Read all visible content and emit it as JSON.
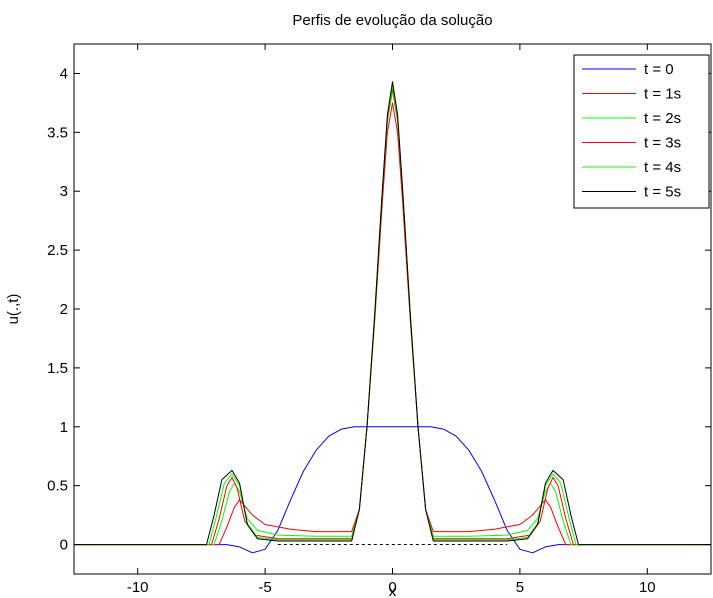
{
  "chart_data": {
    "type": "line",
    "title": "Perfis de evolução da solução",
    "xlabel": "x",
    "ylabel": "u(.,t)",
    "xlim": [
      -12.5,
      12.5
    ],
    "ylim": [
      -0.25,
      4.25
    ],
    "xticks": [
      -10,
      -5,
      0,
      5,
      10
    ],
    "yticks": [
      0,
      0.5,
      1,
      1.5,
      2,
      2.5,
      3,
      3.5,
      4
    ],
    "xtick_labels": [
      "-10",
      "-5",
      "0",
      "5",
      "10"
    ],
    "ytick_labels": [
      "0",
      "0.5",
      "1",
      "1.5",
      "2",
      "2.5",
      "3",
      "3.5",
      "4"
    ],
    "grid": false,
    "legend_position": "top-right",
    "series": [
      {
        "name": "t = 0",
        "color": "#0000ff",
        "x": [
          -12.5,
          -6.5,
          -6.0,
          -5.5,
          -5.0,
          -4.5,
          -4.0,
          -3.5,
          -3.0,
          -2.5,
          -2.0,
          -1.5,
          1.5,
          2.0,
          2.5,
          3.0,
          3.5,
          4.0,
          4.5,
          5.0,
          5.5,
          6.0,
          6.5,
          12.5
        ],
        "y": [
          0,
          0,
          -0.02,
          -0.07,
          -0.04,
          0.12,
          0.38,
          0.62,
          0.8,
          0.92,
          0.98,
          1.0,
          1.0,
          0.98,
          0.92,
          0.8,
          0.62,
          0.38,
          0.12,
          -0.04,
          -0.07,
          -0.02,
          0,
          0
        ]
      },
      {
        "name": "t = 1s",
        "color": "#ff0000",
        "x": [
          -12.5,
          -6.8,
          -6.5,
          -6.2,
          -6.0,
          -5.5,
          -5.0,
          -4.0,
          -3.0,
          -2.0,
          -1.6,
          -1.3,
          -1.0,
          -0.7,
          -0.4,
          -0.2,
          0.0,
          0.2,
          0.4,
          0.7,
          1.0,
          1.3,
          1.6,
          2.0,
          3.0,
          4.0,
          5.0,
          5.5,
          6.0,
          6.2,
          6.5,
          6.8,
          12.5
        ],
        "y": [
          0,
          0,
          0.15,
          0.32,
          0.38,
          0.25,
          0.17,
          0.13,
          0.11,
          0.11,
          0.11,
          0.3,
          1.0,
          1.9,
          2.9,
          3.5,
          3.75,
          3.5,
          2.9,
          1.9,
          1.0,
          0.3,
          0.11,
          0.11,
          0.11,
          0.13,
          0.17,
          0.25,
          0.38,
          0.32,
          0.15,
          0,
          0
        ]
      },
      {
        "name": "t = 2s",
        "color": "#00ff00",
        "x": [
          -12.5,
          -7.0,
          -6.7,
          -6.4,
          -6.2,
          -6.0,
          -5.7,
          -5.3,
          -4.5,
          -3.0,
          -2.0,
          -1.6,
          -1.3,
          -1.0,
          -0.7,
          -0.4,
          -0.2,
          0.0,
          0.2,
          0.4,
          0.7,
          1.0,
          1.3,
          1.6,
          2.0,
          3.0,
          4.5,
          5.3,
          5.7,
          6.0,
          6.2,
          6.4,
          6.7,
          7.0,
          12.5
        ],
        "y": [
          0,
          0,
          0.2,
          0.45,
          0.52,
          0.45,
          0.22,
          0.12,
          0.08,
          0.07,
          0.07,
          0.07,
          0.3,
          1.0,
          1.95,
          3.0,
          3.6,
          3.85,
          3.6,
          3.0,
          1.95,
          1.0,
          0.3,
          0.07,
          0.07,
          0.07,
          0.08,
          0.12,
          0.22,
          0.45,
          0.52,
          0.45,
          0.2,
          0,
          0
        ]
      },
      {
        "name": "t = 3s",
        "color": "#ff0000",
        "x": [
          -12.5,
          -7.1,
          -6.8,
          -6.5,
          -6.3,
          -6.1,
          -5.8,
          -5.4,
          -4.5,
          -3.0,
          -2.0,
          -1.6,
          -1.3,
          -1.0,
          -0.7,
          -0.4,
          -0.2,
          0.0,
          0.2,
          0.4,
          0.7,
          1.0,
          1.3,
          1.6,
          2.0,
          3.0,
          4.5,
          5.4,
          5.8,
          6.1,
          6.3,
          6.5,
          6.8,
          7.1,
          12.5
        ],
        "y": [
          0,
          0,
          0.22,
          0.5,
          0.57,
          0.48,
          0.2,
          0.08,
          0.05,
          0.05,
          0.05,
          0.05,
          0.3,
          1.0,
          1.95,
          3.0,
          3.6,
          3.88,
          3.6,
          3.0,
          1.95,
          1.0,
          0.3,
          0.05,
          0.05,
          0.05,
          0.05,
          0.08,
          0.2,
          0.48,
          0.57,
          0.5,
          0.22,
          0,
          0
        ]
      },
      {
        "name": "t = 4s",
        "color": "#00ff00",
        "x": [
          -12.5,
          -7.2,
          -6.9,
          -6.6,
          -6.3,
          -6.0,
          -5.7,
          -5.3,
          -4.5,
          -3.0,
          -2.0,
          -1.6,
          -1.3,
          -1.0,
          -0.7,
          -0.4,
          -0.2,
          0.0,
          0.2,
          0.4,
          0.7,
          1.0,
          1.3,
          1.6,
          2.0,
          3.0,
          4.5,
          5.3,
          5.7,
          6.0,
          6.3,
          6.6,
          6.9,
          7.2,
          12.5
        ],
        "y": [
          0,
          0,
          0.25,
          0.52,
          0.6,
          0.5,
          0.18,
          0.06,
          0.04,
          0.04,
          0.04,
          0.04,
          0.3,
          1.0,
          1.95,
          3.0,
          3.62,
          3.9,
          3.62,
          3.0,
          1.95,
          1.0,
          0.3,
          0.04,
          0.04,
          0.04,
          0.04,
          0.06,
          0.18,
          0.5,
          0.6,
          0.52,
          0.25,
          0,
          0
        ]
      },
      {
        "name": "t = 5s",
        "color": "#000000",
        "x": [
          -12.5,
          -7.3,
          -7.0,
          -6.7,
          -6.3,
          -6.0,
          -5.7,
          -5.3,
          -4.5,
          -3.0,
          -2.0,
          -1.6,
          -1.3,
          -1.0,
          -0.7,
          -0.4,
          -0.2,
          0.0,
          0.2,
          0.4,
          0.7,
          1.0,
          1.3,
          1.6,
          2.0,
          3.0,
          4.5,
          5.3,
          5.7,
          6.0,
          6.3,
          6.7,
          7.0,
          7.3,
          12.5
        ],
        "y": [
          0,
          0,
          0.25,
          0.55,
          0.63,
          0.52,
          0.17,
          0.05,
          0.03,
          0.03,
          0.03,
          0.03,
          0.3,
          1.0,
          1.95,
          3.0,
          3.65,
          3.93,
          3.65,
          3.0,
          1.95,
          1.0,
          0.3,
          0.03,
          0.03,
          0.03,
          0.03,
          0.05,
          0.17,
          0.52,
          0.63,
          0.55,
          0.25,
          0,
          0
        ]
      }
    ],
    "reference_line": {
      "style": "dashed",
      "color": "#000000",
      "x": [
        -4.5,
        4.5
      ],
      "y": [
        0,
        0
      ]
    }
  }
}
